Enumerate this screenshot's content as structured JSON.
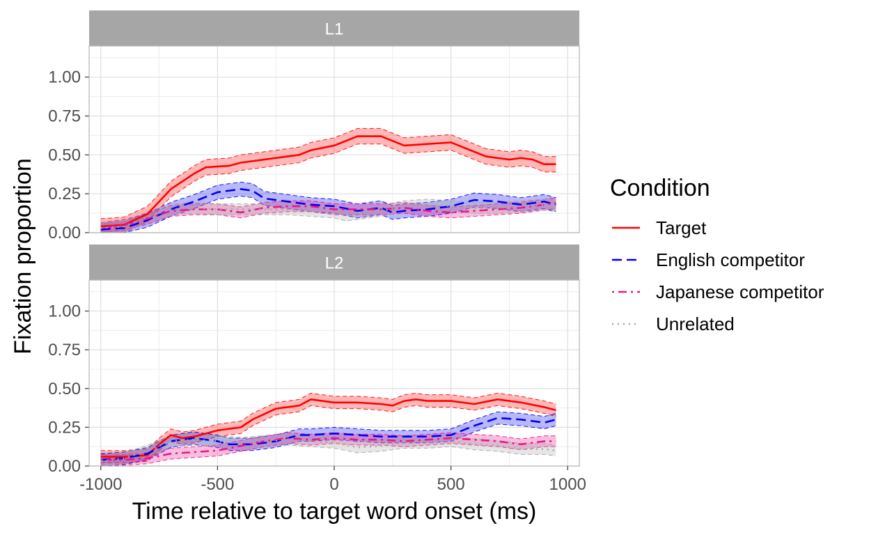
{
  "chart_data": {
    "type": "line",
    "xlabel": "Time relative to target word onset (ms)",
    "ylabel": "Fixation proportion",
    "xlim": [
      -1050,
      1050
    ],
    "ylim": [
      0,
      1.2
    ],
    "x_ticks": [
      -1000,
      -500,
      0,
      500,
      1000
    ],
    "x_tick_labels": [
      "-1000",
      "-500",
      "0",
      "500",
      "1000"
    ],
    "y_ticks": [
      0,
      0.25,
      0.5,
      0.75,
      1.0
    ],
    "y_tick_labels": [
      "0.00",
      "0.25",
      "0.50",
      "0.75",
      "1.00"
    ],
    "legend": {
      "title": "Condition",
      "position": "right",
      "entries": [
        {
          "name": "Target",
          "color": "#ff0000",
          "dash": "solid"
        },
        {
          "name": "English competitor",
          "color": "#0000ee",
          "dash": "dashed"
        },
        {
          "name": "Japanese competitor",
          "color": "#e8178a",
          "dash": "dotdash"
        },
        {
          "name": "Unrelated",
          "color": "#a6a6a6",
          "dash": "dotted"
        }
      ]
    },
    "colors": {
      "strip": "#a6a6a6",
      "grid": "#dedede",
      "panel_border": "#b3b3b3"
    },
    "panels": [
      {
        "label": "L1",
        "series": [
          {
            "name": "Target",
            "points": [
              [
                -1000,
                0.04
              ],
              [
                -900,
                0.05
              ],
              [
                -800,
                0.12
              ],
              [
                -750,
                0.2
              ],
              [
                -700,
                0.28
              ],
              [
                -600,
                0.38
              ],
              [
                -550,
                0.42
              ],
              [
                -450,
                0.43
              ],
              [
                -400,
                0.45
              ],
              [
                -300,
                0.47
              ],
              [
                -200,
                0.49
              ],
              [
                -150,
                0.5
              ],
              [
                -100,
                0.53
              ],
              [
                0,
                0.56
              ],
              [
                50,
                0.59
              ],
              [
                100,
                0.62
              ],
              [
                200,
                0.62
              ],
              [
                300,
                0.56
              ],
              [
                400,
                0.57
              ],
              [
                500,
                0.58
              ],
              [
                600,
                0.52
              ],
              [
                650,
                0.49
              ],
              [
                750,
                0.47
              ],
              [
                800,
                0.48
              ],
              [
                850,
                0.47
              ],
              [
                900,
                0.44
              ],
              [
                950,
                0.44
              ]
            ],
            "ci": 0.05
          },
          {
            "name": "English competitor",
            "points": [
              [
                -1000,
                0.02
              ],
              [
                -900,
                0.03
              ],
              [
                -800,
                0.08
              ],
              [
                -700,
                0.15
              ],
              [
                -600,
                0.2
              ],
              [
                -500,
                0.26
              ],
              [
                -400,
                0.28
              ],
              [
                -350,
                0.27
              ],
              [
                -300,
                0.22
              ],
              [
                -200,
                0.2
              ],
              [
                -100,
                0.18
              ],
              [
                0,
                0.17
              ],
              [
                100,
                0.14
              ],
              [
                200,
                0.16
              ],
              [
                250,
                0.13
              ],
              [
                300,
                0.14
              ],
              [
                400,
                0.15
              ],
              [
                500,
                0.17
              ],
              [
                600,
                0.21
              ],
              [
                700,
                0.2
              ],
              [
                800,
                0.18
              ],
              [
                900,
                0.2
              ],
              [
                950,
                0.18
              ]
            ],
            "ci": 0.045
          },
          {
            "name": "Japanese competitor",
            "points": [
              [
                -1000,
                0.03
              ],
              [
                -900,
                0.05
              ],
              [
                -800,
                0.09
              ],
              [
                -700,
                0.14
              ],
              [
                -600,
                0.15
              ],
              [
                -500,
                0.15
              ],
              [
                -400,
                0.13
              ],
              [
                -300,
                0.16
              ],
              [
                -200,
                0.17
              ],
              [
                -100,
                0.17
              ],
              [
                0,
                0.15
              ],
              [
                100,
                0.15
              ],
              [
                200,
                0.15
              ],
              [
                300,
                0.16
              ],
              [
                400,
                0.14
              ],
              [
                500,
                0.13
              ],
              [
                600,
                0.14
              ],
              [
                700,
                0.15
              ],
              [
                800,
                0.16
              ],
              [
                900,
                0.18
              ],
              [
                950,
                0.19
              ]
            ],
            "ci": 0.035
          },
          {
            "name": "Unrelated",
            "points": [
              [
                -1000,
                0.03
              ],
              [
                -900,
                0.04
              ],
              [
                -800,
                0.1
              ],
              [
                -700,
                0.15
              ],
              [
                -600,
                0.16
              ],
              [
                -500,
                0.15
              ],
              [
                -400,
                0.15
              ],
              [
                -300,
                0.15
              ],
              [
                -200,
                0.15
              ],
              [
                -100,
                0.14
              ],
              [
                0,
                0.13
              ],
              [
                50,
                0.11
              ],
              [
                100,
                0.12
              ],
              [
                200,
                0.14
              ],
              [
                300,
                0.17
              ],
              [
                400,
                0.18
              ],
              [
                500,
                0.17
              ],
              [
                600,
                0.16
              ],
              [
                700,
                0.16
              ],
              [
                800,
                0.17
              ],
              [
                900,
                0.18
              ],
              [
                950,
                0.17
              ]
            ],
            "ci": 0.035
          }
        ]
      },
      {
        "label": "L2",
        "series": [
          {
            "name": "Target",
            "points": [
              [
                -1000,
                0.06
              ],
              [
                -900,
                0.06
              ],
              [
                -800,
                0.07
              ],
              [
                -750,
                0.14
              ],
              [
                -700,
                0.2
              ],
              [
                -650,
                0.18
              ],
              [
                -600,
                0.19
              ],
              [
                -500,
                0.23
              ],
              [
                -400,
                0.25
              ],
              [
                -350,
                0.3
              ],
              [
                -250,
                0.37
              ],
              [
                -150,
                0.39
              ],
              [
                -100,
                0.43
              ],
              [
                -50,
                0.42
              ],
              [
                0,
                0.41
              ],
              [
                100,
                0.41
              ],
              [
                200,
                0.4
              ],
              [
                250,
                0.39
              ],
              [
                300,
                0.42
              ],
              [
                350,
                0.43
              ],
              [
                400,
                0.42
              ],
              [
                500,
                0.42
              ],
              [
                600,
                0.4
              ],
              [
                700,
                0.43
              ],
              [
                800,
                0.41
              ],
              [
                900,
                0.38
              ],
              [
                950,
                0.36
              ]
            ],
            "ci": 0.04
          },
          {
            "name": "English competitor",
            "points": [
              [
                -1000,
                0.04
              ],
              [
                -900,
                0.05
              ],
              [
                -800,
                0.08
              ],
              [
                -700,
                0.16
              ],
              [
                -600,
                0.18
              ],
              [
                -500,
                0.16
              ],
              [
                -450,
                0.14
              ],
              [
                -350,
                0.14
              ],
              [
                -250,
                0.16
              ],
              [
                -150,
                0.2
              ],
              [
                -100,
                0.2
              ],
              [
                0,
                0.21
              ],
              [
                100,
                0.2
              ],
              [
                200,
                0.19
              ],
              [
                300,
                0.19
              ],
              [
                400,
                0.19
              ],
              [
                500,
                0.2
              ],
              [
                600,
                0.26
              ],
              [
                700,
                0.31
              ],
              [
                800,
                0.3
              ],
              [
                900,
                0.28
              ],
              [
                950,
                0.3
              ]
            ],
            "ci": 0.04
          },
          {
            "name": "Japanese competitor",
            "points": [
              [
                -1000,
                0.04
              ],
              [
                -900,
                0.04
              ],
              [
                -800,
                0.05
              ],
              [
                -700,
                0.08
              ],
              [
                -600,
                0.09
              ],
              [
                -500,
                0.1
              ],
              [
                -400,
                0.13
              ],
              [
                -300,
                0.16
              ],
              [
                -200,
                0.18
              ],
              [
                -100,
                0.17
              ],
              [
                0,
                0.18
              ],
              [
                100,
                0.17
              ],
              [
                200,
                0.17
              ],
              [
                300,
                0.16
              ],
              [
                400,
                0.17
              ],
              [
                500,
                0.18
              ],
              [
                600,
                0.17
              ],
              [
                700,
                0.16
              ],
              [
                800,
                0.14
              ],
              [
                900,
                0.16
              ],
              [
                950,
                0.16
              ]
            ],
            "ci": 0.035
          },
          {
            "name": "Unrelated",
            "points": [
              [
                -1000,
                0.03
              ],
              [
                -900,
                0.05
              ],
              [
                -800,
                0.1
              ],
              [
                -700,
                0.16
              ],
              [
                -600,
                0.17
              ],
              [
                -500,
                0.16
              ],
              [
                -400,
                0.15
              ],
              [
                -300,
                0.16
              ],
              [
                -200,
                0.17
              ],
              [
                -100,
                0.16
              ],
              [
                0,
                0.15
              ],
              [
                100,
                0.12
              ],
              [
                200,
                0.13
              ],
              [
                300,
                0.15
              ],
              [
                400,
                0.15
              ],
              [
                500,
                0.16
              ],
              [
                600,
                0.14
              ],
              [
                700,
                0.13
              ],
              [
                800,
                0.11
              ],
              [
                900,
                0.11
              ],
              [
                950,
                0.1
              ]
            ],
            "ci": 0.035
          }
        ]
      }
    ]
  }
}
